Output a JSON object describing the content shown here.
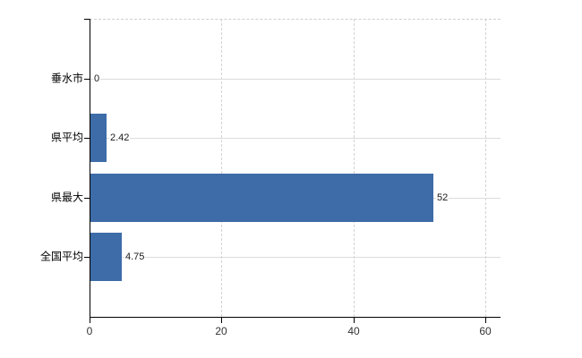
{
  "chart_data": {
    "type": "bar",
    "orientation": "horizontal",
    "title": "",
    "categories": [
      "垂水市",
      "県平均",
      "県最大",
      "全国平均"
    ],
    "values": [
      0,
      2.42,
      52,
      4.75
    ],
    "value_labels": [
      "0",
      "2.42",
      "52",
      "4.75"
    ],
    "x_ticks": [
      0,
      20,
      40,
      60
    ],
    "x_tick_labels": [
      "0",
      "20",
      "40",
      "60"
    ],
    "xlim": [
      0,
      62.3
    ],
    "grid": true,
    "legend": false,
    "bar_color": "#3d6ca8",
    "axis_color": "#000000",
    "gridline_color": "#d9d9d9",
    "background_color": "#ffffff"
  }
}
